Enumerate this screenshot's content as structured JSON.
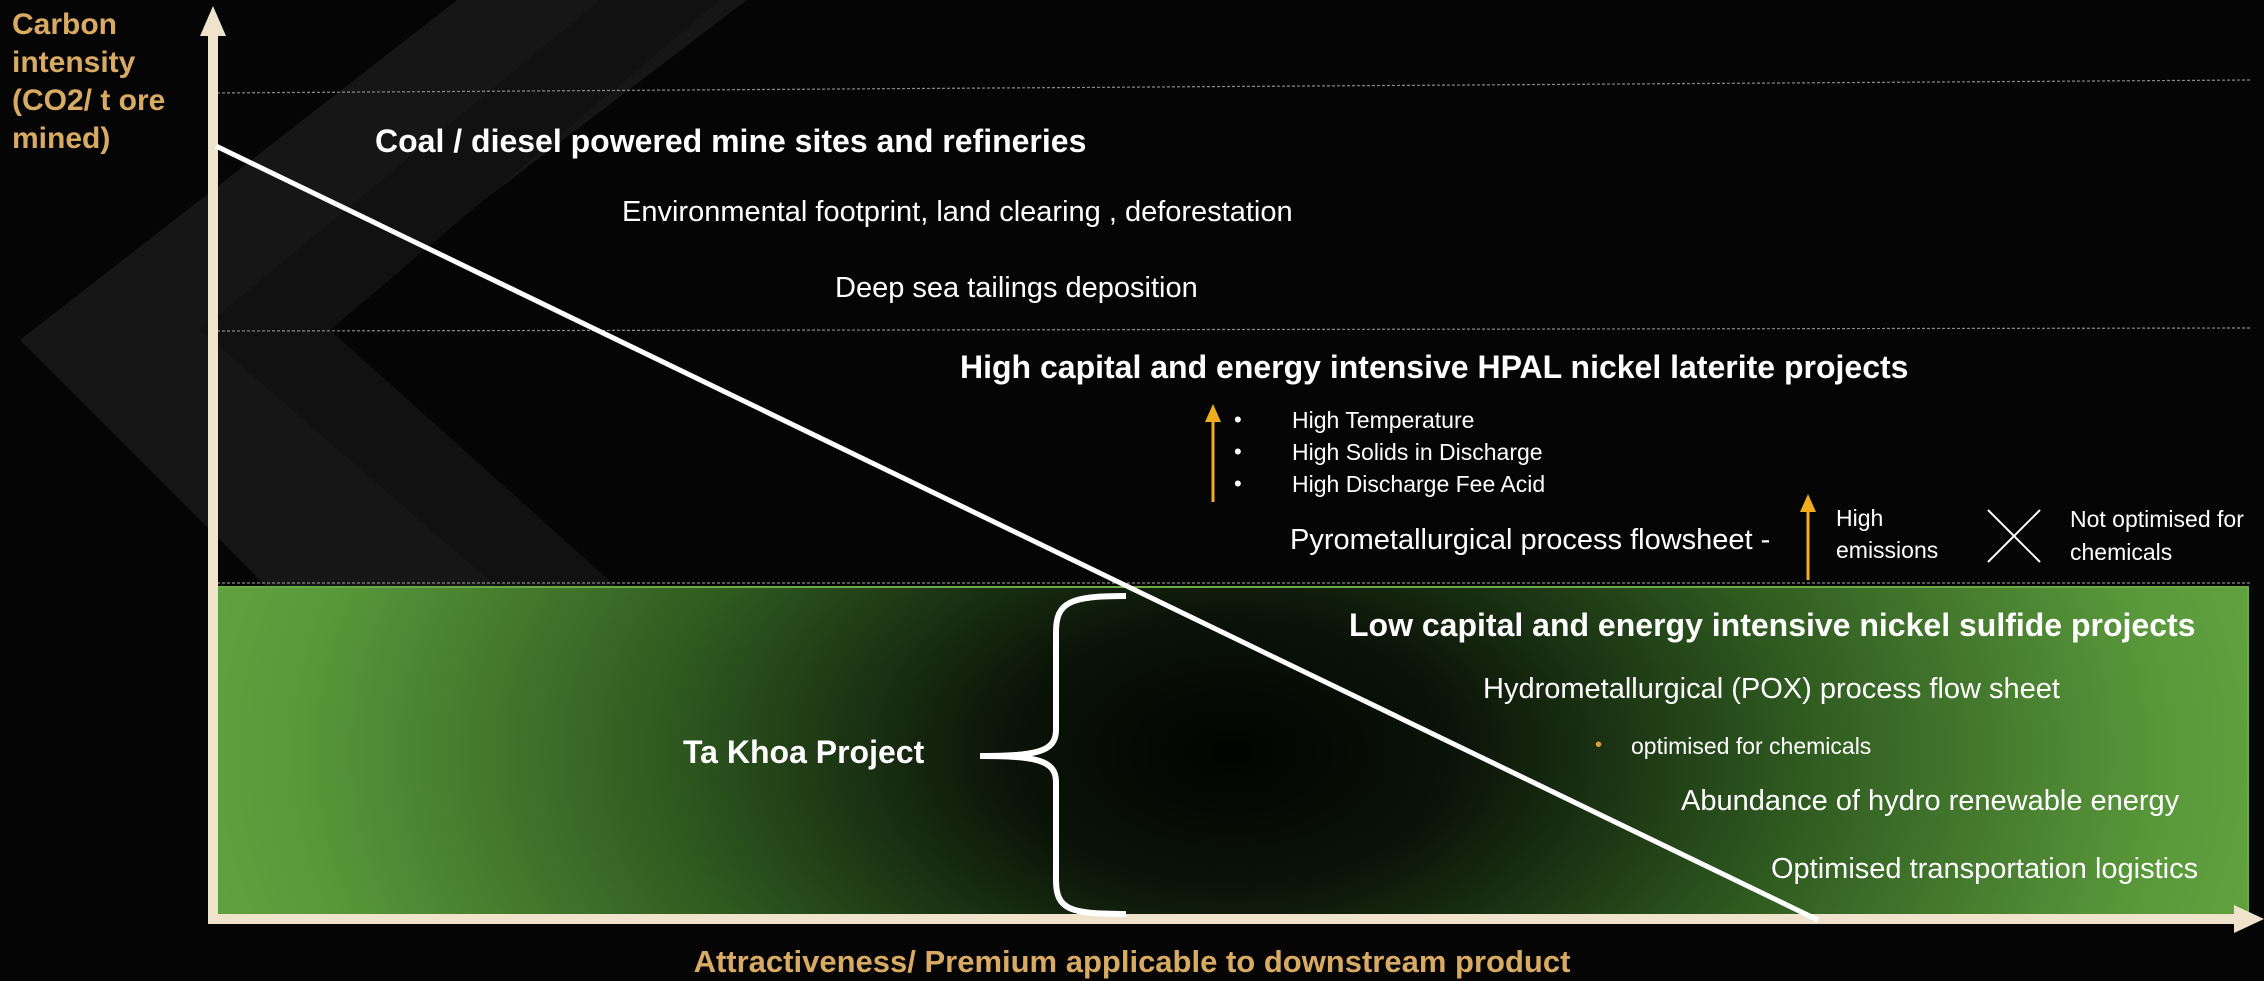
{
  "axes": {
    "y_title": "Carbon intensity (CO2/ t ore mined)",
    "x_title": "Attractiveness/ Premium applicable to downstream product"
  },
  "colors": {
    "axis": "#efe3cc",
    "accent_gold": "#d9ab62",
    "arrow_orange": "#f0ad1e",
    "green_light": "#6aab45",
    "green_dark": "#0b1408",
    "background": "#050505"
  },
  "top_zone": {
    "heading": "Coal / diesel powered mine sites and refineries",
    "items": [
      "Environmental footprint, land clearing , deforestation",
      "Deep sea tailings deposition"
    ]
  },
  "middle_zone": {
    "heading": "High capital and energy intensive HPAL nickel laterite projects",
    "bullets": [
      "High Temperature",
      "High Solids in Discharge",
      "High Discharge Fee Acid"
    ],
    "pyro_label": "Pyrometallurgical process flowsheet -",
    "emissions_label": "High emissions",
    "not_optimised_label": "Not optimised for chemicals"
  },
  "bottom_zone": {
    "project_label": "Ta Khoa Project",
    "heading": "Low capital  and energy intensive nickel sulfide projects",
    "items": [
      "Hydrometallurgical (POX) process flow sheet",
      "optimised for chemicals",
      "Abundance of hydro renewable energy",
      "Optimised transportation logistics"
    ]
  }
}
